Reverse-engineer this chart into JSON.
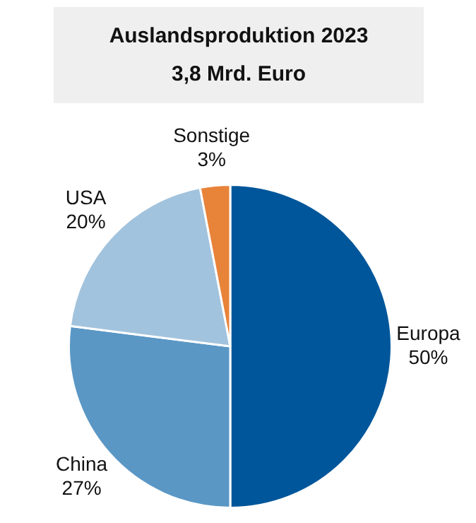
{
  "chart_data": {
    "type": "pie",
    "title": "Auslandsproduktion 2023",
    "subtitle": "3,8 Mrd. Euro",
    "categories": [
      "Europa",
      "China",
      "USA",
      "Sonstige"
    ],
    "values": [
      50,
      27,
      20,
      3
    ],
    "colors": [
      "#00569a",
      "#5a97c5",
      "#a2c3dd",
      "#e8833a"
    ],
    "value_labels": [
      "50%",
      "27%",
      "20%",
      "3%"
    ],
    "legend": false
  }
}
